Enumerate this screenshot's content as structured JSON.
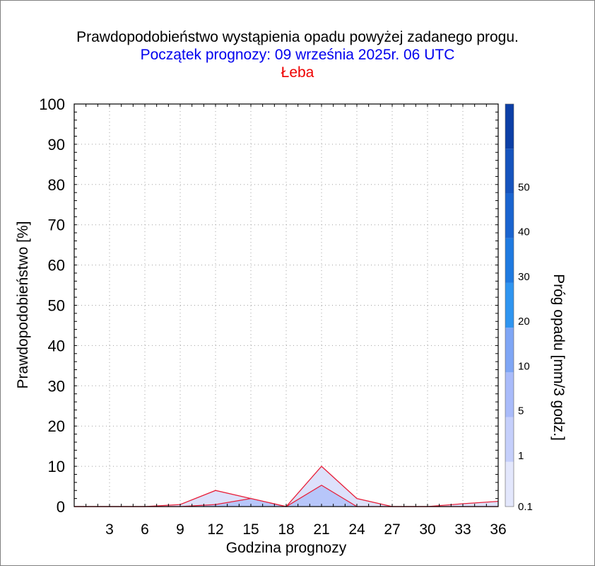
{
  "chart_data": {
    "type": "area",
    "title": "Prawdopodobieństwo wystąpienia opadu powyżej zadanego progu.",
    "subtitle": "Początek prognozy: 09 września 2025r. 06 UTC",
    "location": "Łeba",
    "xlabel": "Godzina prognozy",
    "ylabel": "Prawdopodobieństwo [%]",
    "xlim": [
      0,
      36
    ],
    "ylim": [
      0,
      100
    ],
    "x_ticks": [
      3,
      6,
      9,
      12,
      15,
      18,
      21,
      24,
      27,
      30,
      33,
      36
    ],
    "y_ticks": [
      0,
      10,
      20,
      30,
      40,
      50,
      60,
      70,
      80,
      90,
      100
    ],
    "grid": true,
    "x": [
      0,
      3,
      6,
      9,
      12,
      15,
      18,
      21,
      24,
      27,
      30,
      33,
      36
    ],
    "series": [
      {
        "threshold": "0.1",
        "color": "#dde1fb",
        "values": [
          0,
          0,
          0,
          0.5,
          4,
          2,
          0,
          10,
          2,
          0,
          0,
          0.7,
          1.3
        ]
      },
      {
        "threshold": "1",
        "color": "#b7c6fa",
        "values": [
          0,
          0,
          0,
          0,
          0.5,
          2,
          0,
          5.3,
          0,
          0,
          0,
          0,
          0
        ]
      }
    ],
    "colorbar": {
      "label": "Próg opadu [mm/3 godz.]",
      "levels": [
        "0.1",
        "1",
        "5",
        "10",
        "20",
        "30",
        "40",
        "50"
      ],
      "colors": [
        "#e3e7fc",
        "#c5cffb",
        "#a9bbfa",
        "#7fa6f5",
        "#2f95f0",
        "#1f7ae0",
        "#1a64cf",
        "#1553bd",
        "#0c3fa6"
      ]
    }
  }
}
